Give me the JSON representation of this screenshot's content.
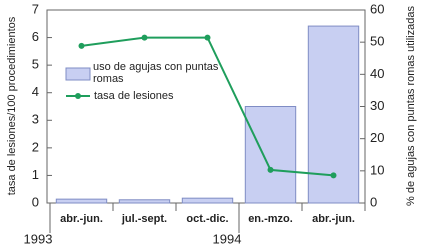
{
  "chart_data": {
    "type": "bar-line",
    "categories": [
      "abr.-jun.",
      "jul.-sept.",
      "oct.-dic.",
      "en.-mzo.",
      "abr.-jun."
    ],
    "year_categories": [
      "1993",
      null,
      null,
      "1994",
      null
    ],
    "series": [
      {
        "name": "uso de agujas con puntas romas",
        "type": "bar",
        "axis": "y2",
        "color": "#c8cff2",
        "values": [
          1.2,
          1.0,
          1.5,
          30,
          55
        ]
      },
      {
        "name": "tasa de lesiones",
        "type": "line",
        "axis": "y",
        "color": "#1f9e5c",
        "values": [
          5.7,
          6.0,
          6.0,
          1.2,
          1.0
        ]
      }
    ],
    "ylabel": "tasa de lesiones/100 procedimientos",
    "y2label": "% de agujas con puntas romas utilizadas",
    "ylim": [
      0,
      7
    ],
    "yticks": [
      0,
      1,
      2,
      3,
      4,
      5,
      6,
      7
    ],
    "y2lim": [
      0,
      60
    ],
    "y2ticks": [
      0,
      10,
      20,
      30,
      40,
      50,
      60
    ]
  }
}
